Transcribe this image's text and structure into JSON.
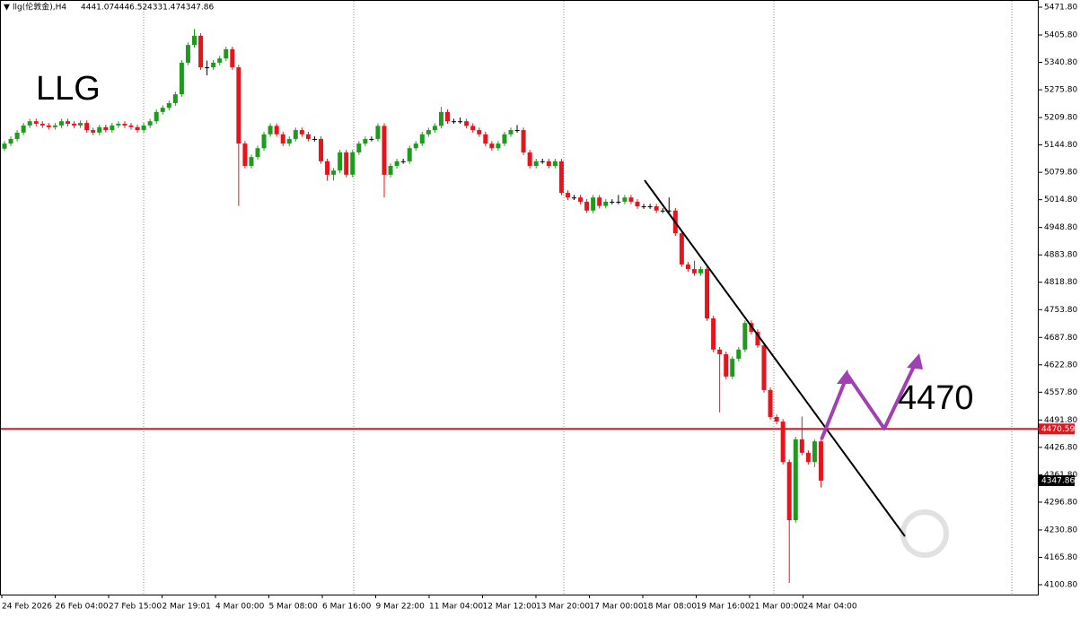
{
  "chart_data": {
    "type": "candlestick",
    "header": "llg(伦敦金),H4",
    "annotations": [
      "LLG",
      "4470"
    ],
    "hline": {
      "value": 4470.59,
      "label": "4470.59",
      "color": "#e8141c"
    },
    "up_color": "#1f9a1f",
    "down_color": "#e8141c",
    "ylim": [
      4100.8,
      5471.8
    ],
    "yticks": [
      {
        "value": 5471.8,
        "label": "5471.80"
      },
      {
        "value": 5405.8,
        "label": "5405.80"
      },
      {
        "value": 5340.8,
        "label": "5340.80"
      },
      {
        "value": 5275.8,
        "label": "5275.80"
      },
      {
        "value": 5209.8,
        "label": "5209.80"
      },
      {
        "value": 5144.8,
        "label": "5144.80"
      },
      {
        "value": 5079.8,
        "label": "5079.80"
      },
      {
        "value": 5014.8,
        "label": "5014.80"
      },
      {
        "value": 4948.8,
        "label": "4948.80"
      },
      {
        "value": 4883.8,
        "label": "4883.80"
      },
      {
        "value": 4818.8,
        "label": "4818.80"
      },
      {
        "value": 4753.8,
        "label": "4753.80"
      },
      {
        "value": 4687.8,
        "label": "4687.80"
      },
      {
        "value": 4622.8,
        "label": "4622.80"
      },
      {
        "value": 4557.8,
        "label": "4557.80"
      },
      {
        "value": 4491.8,
        "label": "4491.80"
      },
      {
        "value": 4426.8,
        "label": "4426.80"
      },
      {
        "value": 4361.8,
        "label": "4361.80"
      },
      {
        "value": 4296.8,
        "label": "4296.80"
      },
      {
        "value": 4230.8,
        "label": "4230.80"
      },
      {
        "value": 4165.8,
        "label": "4165.80"
      },
      {
        "value": 4100.8,
        "label": "4100.80"
      }
    ],
    "categories": [
      "24 Feb 2026",
      "26 Feb 04:00",
      "27 Feb 15:00",
      "2 Mar 19:01",
      "4 Mar 00:00",
      "5 Mar 08:00",
      "6 Mar 16:00",
      "9 Mar 22:00",
      "11 Mar 04:00",
      "12 Mar 12:00",
      "13 Mar 20:00",
      "17 Mar 00:00",
      "18 Mar 08:00",
      "19 Mar 16:00",
      "21 Mar 00:00",
      "24 Mar 04:00"
    ],
    "candles": [
      [
        5136,
        5154,
        5130,
        5148
      ],
      [
        5148,
        5165,
        5142,
        5159
      ],
      [
        5159,
        5180,
        5153,
        5174
      ],
      [
        5174,
        5197,
        5168,
        5191
      ],
      [
        5191,
        5207,
        5185,
        5201
      ],
      [
        5201,
        5207,
        5189,
        5195
      ],
      [
        5195,
        5201,
        5185,
        5191
      ],
      [
        5191,
        5197,
        5181,
        5187
      ],
      [
        5187,
        5197,
        5181,
        5191
      ],
      [
        5191,
        5207,
        5185,
        5201
      ],
      [
        5201,
        5207,
        5189,
        5195
      ],
      [
        5195,
        5201,
        5185,
        5191
      ],
      [
        5191,
        5203,
        5185,
        5197
      ],
      [
        5197,
        5203,
        5174,
        5180
      ],
      [
        5180,
        5186,
        5168,
        5174
      ],
      [
        5174,
        5193,
        5168,
        5187
      ],
      [
        5187,
        5193,
        5174,
        5180
      ],
      [
        5180,
        5197,
        5174,
        5191
      ],
      [
        5191,
        5201,
        5185,
        5195
      ],
      [
        5195,
        5201,
        5185,
        5191
      ],
      [
        5191,
        5197,
        5181,
        5187
      ],
      [
        5187,
        5193,
        5174,
        5180
      ],
      [
        5180,
        5197,
        5174,
        5191
      ],
      [
        5191,
        5207,
        5185,
        5201
      ],
      [
        5201,
        5229,
        5195,
        5223
      ],
      [
        5223,
        5239,
        5217,
        5233
      ],
      [
        5233,
        5250,
        5227,
        5244
      ],
      [
        5244,
        5271,
        5238,
        5265
      ],
      [
        5265,
        5346,
        5259,
        5340
      ],
      [
        5340,
        5388,
        5334,
        5382
      ],
      [
        5382,
        5420,
        5376,
        5404
      ],
      [
        5404,
        5410,
        5323,
        5329
      ],
      [
        5329,
        5345,
        5310,
        5329
      ],
      [
        5329,
        5346,
        5323,
        5340
      ],
      [
        5340,
        5356,
        5334,
        5350
      ],
      [
        5350,
        5378,
        5344,
        5372
      ],
      [
        5372,
        5378,
        5323,
        5329
      ],
      [
        5329,
        5335,
        5000,
        5148
      ],
      [
        5148,
        5154,
        5089,
        5095
      ],
      [
        5095,
        5122,
        5089,
        5116
      ],
      [
        5116,
        5143,
        5110,
        5137
      ],
      [
        5137,
        5176,
        5131,
        5170
      ],
      [
        5170,
        5196,
        5164,
        5190
      ],
      [
        5190,
        5196,
        5164,
        5170
      ],
      [
        5170,
        5176,
        5142,
        5148
      ],
      [
        5148,
        5165,
        5142,
        5159
      ],
      [
        5159,
        5186,
        5153,
        5180
      ],
      [
        5180,
        5186,
        5164,
        5170
      ],
      [
        5170,
        5176,
        5153,
        5159
      ],
      [
        5159,
        5165,
        5153,
        5159
      ],
      [
        5159,
        5165,
        5100,
        5106
      ],
      [
        5106,
        5112,
        5060,
        5074
      ],
      [
        5074,
        5090,
        5060,
        5084
      ],
      [
        5084,
        5133,
        5078,
        5127
      ],
      [
        5127,
        5133,
        5068,
        5074
      ],
      [
        5074,
        5133,
        5068,
        5127
      ],
      [
        5127,
        5154,
        5121,
        5148
      ],
      [
        5148,
        5165,
        5142,
        5159
      ],
      [
        5159,
        5165,
        5153,
        5159
      ],
      [
        5159,
        5196,
        5153,
        5190
      ],
      [
        5190,
        5196,
        5020,
        5074
      ],
      [
        5074,
        5101,
        5068,
        5095
      ],
      [
        5095,
        5112,
        5089,
        5106
      ],
      [
        5106,
        5112,
        5100,
        5106
      ],
      [
        5106,
        5143,
        5100,
        5137
      ],
      [
        5137,
        5154,
        5131,
        5148
      ],
      [
        5148,
        5176,
        5142,
        5170
      ],
      [
        5170,
        5186,
        5164,
        5180
      ],
      [
        5180,
        5196,
        5174,
        5190
      ],
      [
        5190,
        5235,
        5184,
        5223
      ],
      [
        5223,
        5229,
        5195,
        5201
      ],
      [
        5201,
        5207,
        5195,
        5201
      ],
      [
        5201,
        5210,
        5195,
        5201
      ],
      [
        5201,
        5207,
        5184,
        5190
      ],
      [
        5190,
        5196,
        5174,
        5180
      ],
      [
        5180,
        5186,
        5164,
        5170
      ],
      [
        5170,
        5176,
        5142,
        5148
      ],
      [
        5148,
        5154,
        5131,
        5137
      ],
      [
        5137,
        5154,
        5131,
        5148
      ],
      [
        5148,
        5176,
        5142,
        5170
      ],
      [
        5170,
        5186,
        5164,
        5180
      ],
      [
        5180,
        5192,
        5174,
        5180
      ],
      [
        5180,
        5186,
        5121,
        5127
      ],
      [
        5127,
        5133,
        5089,
        5095
      ],
      [
        5095,
        5112,
        5089,
        5106
      ],
      [
        5106,
        5112,
        5100,
        5106
      ],
      [
        5106,
        5112,
        5089,
        5095
      ],
      [
        5095,
        5112,
        5089,
        5106
      ],
      [
        5106,
        5112,
        5025,
        5031
      ],
      [
        5031,
        5037,
        5014,
        5020
      ],
      [
        5020,
        5026,
        5014,
        5020
      ],
      [
        5020,
        5026,
        5004,
        5010
      ],
      [
        5010,
        5016,
        4983,
        4989
      ],
      [
        4989,
        5026,
        4983,
        5020
      ],
      [
        5020,
        5026,
        4994,
        5000
      ],
      [
        5000,
        5016,
        4994,
        5010
      ],
      [
        5010,
        5016,
        5004,
        5010
      ],
      [
        5010,
        5026,
        5004,
        5010
      ],
      [
        5010,
        5026,
        5004,
        5020
      ],
      [
        5020,
        5026,
        5004,
        5010
      ],
      [
        5010,
        5016,
        4993,
        4999
      ],
      [
        4999,
        5005,
        4993,
        4999
      ],
      [
        4999,
        5005,
        4993,
        4999
      ],
      [
        4999,
        5005,
        4983,
        4989
      ],
      [
        4989,
        4995,
        4983,
        4989
      ],
      [
        4989,
        5020,
        4983,
        4989
      ],
      [
        4989,
        4995,
        4929,
        4935
      ],
      [
        4935,
        4941,
        4855,
        4861
      ],
      [
        4861,
        4867,
        4844,
        4850
      ],
      [
        4850,
        4870,
        4834,
        4840
      ],
      [
        4840,
        4856,
        4834,
        4850
      ],
      [
        4850,
        4856,
        4727,
        4733
      ],
      [
        4733,
        4739,
        4653,
        4659
      ],
      [
        4659,
        4665,
        4510,
        4648
      ],
      [
        4648,
        4654,
        4589,
        4595
      ],
      [
        4595,
        4643,
        4589,
        4637
      ],
      [
        4637,
        4665,
        4631,
        4659
      ],
      [
        4659,
        4728,
        4653,
        4722
      ],
      [
        4722,
        4728,
        4695,
        4701
      ],
      [
        4701,
        4707,
        4663,
        4669
      ],
      [
        4669,
        4675,
        4557,
        4563
      ],
      [
        4563,
        4569,
        4493,
        4499
      ],
      [
        4499,
        4505,
        4482,
        4488
      ],
      [
        4488,
        4494,
        4386,
        4392
      ],
      [
        4392,
        4398,
        4105,
        4254
      ],
      [
        4254,
        4452,
        4248,
        4446
      ],
      [
        4446,
        4500,
        4408,
        4414
      ],
      [
        4414,
        4420,
        4386,
        4392
      ],
      [
        4392,
        4446,
        4380,
        4441.07
      ],
      [
        4441.07,
        4446.52,
        4331.47,
        4347.86
      ]
    ]
  }
}
